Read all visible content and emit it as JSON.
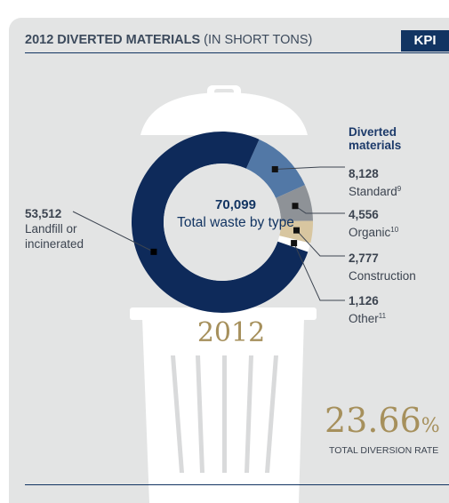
{
  "header": {
    "title_bold": "2012 DIVERTED MATERIALS",
    "title_rest": "(IN SHORT TONS)",
    "badge": "KPI"
  },
  "legend_title": "Diverted materials",
  "center": {
    "value": "70,099",
    "label": "Total waste by type"
  },
  "year": "2012",
  "diversion": {
    "value": "23.66",
    "unit": "%",
    "label": "TOTAL DIVERSION RATE"
  },
  "colors": {
    "landfill": "#0e2a5a",
    "standard": "#5278a6",
    "organic": "#8e9297",
    "construction": "#d8c6a0",
    "other": "#ffffff",
    "accent_gold": "#a6905c"
  },
  "chart_data": {
    "type": "pie",
    "title": "2012 DIVERTED MATERIALS (IN SHORT TONS)",
    "total": 70099,
    "total_label": "Total waste by type",
    "slices": [
      {
        "value": 53512,
        "value_text": "53,512",
        "name": "Landfill or incinerated",
        "sup": ""
      },
      {
        "value": 8128,
        "value_text": "8,128",
        "name": "Standard",
        "sup": "9"
      },
      {
        "value": 4556,
        "value_text": "4,556",
        "name": "Organic",
        "sup": "10"
      },
      {
        "value": 2777,
        "value_text": "2,777",
        "name": "Construction",
        "sup": ""
      },
      {
        "value": 1126,
        "value_text": "1,126",
        "name": "Other",
        "sup": "11"
      }
    ]
  }
}
